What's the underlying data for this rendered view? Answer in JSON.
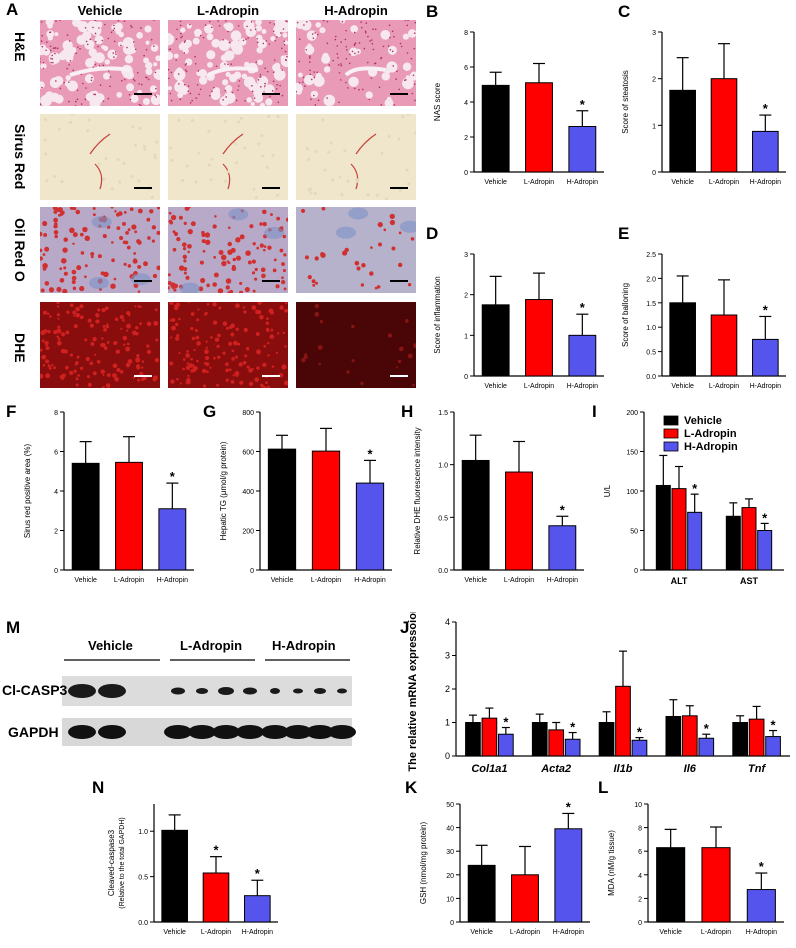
{
  "panel_letters": [
    "A",
    "B",
    "C",
    "D",
    "E",
    "F",
    "G",
    "H",
    "I",
    "M",
    "J",
    "N",
    "K",
    "L"
  ],
  "micro": {
    "columns": [
      "Vehicle",
      "L-Adropin",
      "H-Adropin"
    ],
    "rows": [
      "H&E",
      "Sirus Red",
      "Oil Red O",
      "DHE"
    ],
    "colors": {
      "he": "#e89ab6",
      "sirius": "#efe6cc",
      "oil": "#b8a9c8",
      "dhe": "#8a0d0d"
    }
  },
  "blot": {
    "groups": [
      "Vehicle",
      "L-Adropin",
      "H-Adropin"
    ],
    "bands": [
      "Cl-CASP3",
      "GAPDH"
    ]
  },
  "chart_data": [
    {
      "id": "B",
      "type": "bar",
      "categories": [
        "Vehicle",
        "L-Adropin",
        "H-Adropin"
      ],
      "values": [
        4.95,
        5.1,
        2.6
      ],
      "errors": [
        0.75,
        1.1,
        0.9
      ],
      "ylabel": "NAS score",
      "ylim": [
        0,
        8
      ],
      "yticks": [
        0,
        2,
        4,
        6,
        8
      ],
      "colors": [
        "#000000",
        "#ff0000",
        "#5555ee"
      ],
      "sig": [
        false,
        false,
        true
      ]
    },
    {
      "id": "C",
      "type": "bar",
      "categories": [
        "Vehicle",
        "L-Adropin",
        "H-Adropin"
      ],
      "values": [
        1.75,
        2.0,
        0.87
      ],
      "errors": [
        0.7,
        0.75,
        0.35
      ],
      "ylabel": "Score of steatosis",
      "ylim": [
        0,
        3
      ],
      "yticks": [
        0,
        1,
        2,
        3
      ],
      "colors": [
        "#000000",
        "#ff0000",
        "#5555ee"
      ],
      "sig": [
        false,
        false,
        true
      ]
    },
    {
      "id": "D",
      "type": "bar",
      "categories": [
        "Vehicle",
        "L-Adropin",
        "H-Adropin"
      ],
      "values": [
        1.75,
        1.88,
        1.0
      ],
      "errors": [
        0.7,
        0.65,
        0.52
      ],
      "ylabel": "Score of inflammation",
      "ylim": [
        0,
        3
      ],
      "yticks": [
        0,
        1,
        2,
        3
      ],
      "colors": [
        "#000000",
        "#ff0000",
        "#5555ee"
      ],
      "sig": [
        false,
        false,
        true
      ]
    },
    {
      "id": "E",
      "type": "bar",
      "categories": [
        "Vehicle",
        "L-Adropin",
        "H-Adropin"
      ],
      "values": [
        1.5,
        1.25,
        0.75
      ],
      "errors": [
        0.55,
        0.72,
        0.47
      ],
      "ylabel": "Score of balloning",
      "ylim": [
        0,
        2.5
      ],
      "yticks": [
        0,
        0.5,
        1.0,
        1.5,
        2.0,
        2.5
      ],
      "tickfmt": 1,
      "colors": [
        "#000000",
        "#ff0000",
        "#5555ee"
      ],
      "sig": [
        false,
        false,
        true
      ]
    },
    {
      "id": "F",
      "type": "bar",
      "categories": [
        "Vehicle",
        "L-Adropin",
        "H-Adropin"
      ],
      "values": [
        5.4,
        5.45,
        3.1
      ],
      "errors": [
        1.1,
        1.3,
        1.3
      ],
      "ylabel": "Sirus red positive area (%)",
      "ylim": [
        0,
        8
      ],
      "yticks": [
        0,
        2,
        4,
        6,
        8
      ],
      "colors": [
        "#000000",
        "#ff0000",
        "#5555ee"
      ],
      "sig": [
        false,
        false,
        true
      ]
    },
    {
      "id": "G",
      "type": "bar",
      "categories": [
        "Vehicle",
        "L-Adropin",
        "H-Adropin"
      ],
      "values": [
        612,
        602,
        440
      ],
      "errors": [
        70,
        115,
        115
      ],
      "ylabel": "Hepatic TG (μmol/g protein)",
      "ylim": [
        0,
        800
      ],
      "yticks": [
        0,
        200,
        400,
        600,
        800
      ],
      "colors": [
        "#000000",
        "#ff0000",
        "#5555ee"
      ],
      "sig": [
        false,
        false,
        true
      ]
    },
    {
      "id": "H",
      "type": "bar",
      "categories": [
        "Vehicle",
        "L-Adropin",
        "H-Adropin"
      ],
      "values": [
        1.04,
        0.93,
        0.42
      ],
      "errors": [
        0.24,
        0.29,
        0.09
      ],
      "ylabel": "Relative DHE fluorescence intensity",
      "ylim": [
        0,
        1.5
      ],
      "yticks": [
        0,
        0.5,
        1.0,
        1.5
      ],
      "tickfmt": 1,
      "colors": [
        "#000000",
        "#ff0000",
        "#5555ee"
      ],
      "sig": [
        false,
        false,
        true
      ]
    },
    {
      "id": "I",
      "type": "bar",
      "categories": [
        "ALT",
        "AST"
      ],
      "series": [
        {
          "name": "Vehicle",
          "values": [
            107,
            68
          ],
          "errors": [
            38,
            17
          ]
        },
        {
          "name": "L-Adropin",
          "values": [
            103,
            79
          ],
          "errors": [
            28,
            11
          ]
        },
        {
          "name": "H-Adropin",
          "values": [
            73,
            50
          ],
          "errors": [
            23,
            9
          ]
        }
      ],
      "ylabel": "U/L",
      "ylim": [
        0,
        200
      ],
      "yticks": [
        0,
        50,
        100,
        150,
        200
      ],
      "colors": [
        "#000000",
        "#ff0000",
        "#5555ee"
      ],
      "sig": [
        [
          false,
          false,
          true
        ],
        [
          false,
          false,
          true
        ]
      ]
    },
    {
      "id": "J",
      "type": "bar",
      "categories": [
        "Col1a1",
        "Acta2",
        "Il1b",
        "Il6",
        "Tnf"
      ],
      "series": [
        {
          "name": "Vehicle",
          "values": [
            1.0,
            1.0,
            1.0,
            1.18,
            1.0
          ]
        },
        {
          "name": "L-Adropin",
          "values": [
            1.13,
            0.78,
            2.08,
            1.2,
            1.1
          ]
        },
        {
          "name": "H-Adropin",
          "values": [
            0.65,
            0.5,
            0.47,
            0.53,
            0.58
          ]
        }
      ],
      "errors": [
        [
          0.22,
          0.25,
          0.32,
          0.5,
          0.2
        ],
        [
          0.3,
          0.22,
          1.05,
          0.3,
          0.38
        ],
        [
          0.2,
          0.2,
          0.08,
          0.12,
          0.18
        ]
      ],
      "ylabel": "The relative mRNA expressoion",
      "ylim": [
        0,
        4
      ],
      "yticks": [
        0,
        1,
        2,
        3,
        4
      ],
      "colors": [
        "#000000",
        "#ff0000",
        "#5555ee"
      ],
      "sig": [
        [
          false,
          false,
          true
        ],
        [
          false,
          false,
          true
        ],
        [
          false,
          false,
          true
        ],
        [
          false,
          false,
          true
        ],
        [
          false,
          false,
          true
        ]
      ]
    },
    {
      "id": "N",
      "type": "bar",
      "categories": [
        "Vehicle",
        "L-Adropin",
        "H-Adropin"
      ],
      "values": [
        1.01,
        0.54,
        0.29
      ],
      "errors": [
        0.17,
        0.18,
        0.17
      ],
      "ylabel": "Cleaved-caspase3",
      "ylabel2": "(Relative to the total GAPDH)",
      "ylim": [
        0,
        1.3
      ],
      "yticks": [
        0,
        0.5,
        1.0
      ],
      "tickfmt": 1,
      "colors": [
        "#000000",
        "#ff0000",
        "#5555ee"
      ],
      "sig": [
        false,
        true,
        true
      ]
    },
    {
      "id": "K",
      "type": "bar",
      "categories": [
        "Vehicle",
        "L-Adropin",
        "H-Adropin"
      ],
      "values": [
        24,
        20,
        39.5
      ],
      "errors": [
        8.5,
        12,
        6.5
      ],
      "ylabel": "GSH (nmol/mg protein)",
      "ylim": [
        0,
        50
      ],
      "yticks": [
        0,
        10,
        20,
        30,
        40,
        50
      ],
      "colors": [
        "#000000",
        "#ff0000",
        "#5555ee"
      ],
      "sig": [
        false,
        false,
        true
      ]
    },
    {
      "id": "L",
      "type": "bar",
      "categories": [
        "Vehicle",
        "L-Adropin",
        "H-Adropin"
      ],
      "values": [
        6.3,
        6.3,
        2.75
      ],
      "errors": [
        1.55,
        1.75,
        1.4
      ],
      "ylabel": "MDA (nM/g tissue)",
      "ylim": [
        0,
        10
      ],
      "yticks": [
        0,
        2,
        4,
        6,
        8,
        10
      ],
      "colors": [
        "#000000",
        "#ff0000",
        "#5555ee"
      ],
      "sig": [
        false,
        false,
        true
      ]
    }
  ]
}
